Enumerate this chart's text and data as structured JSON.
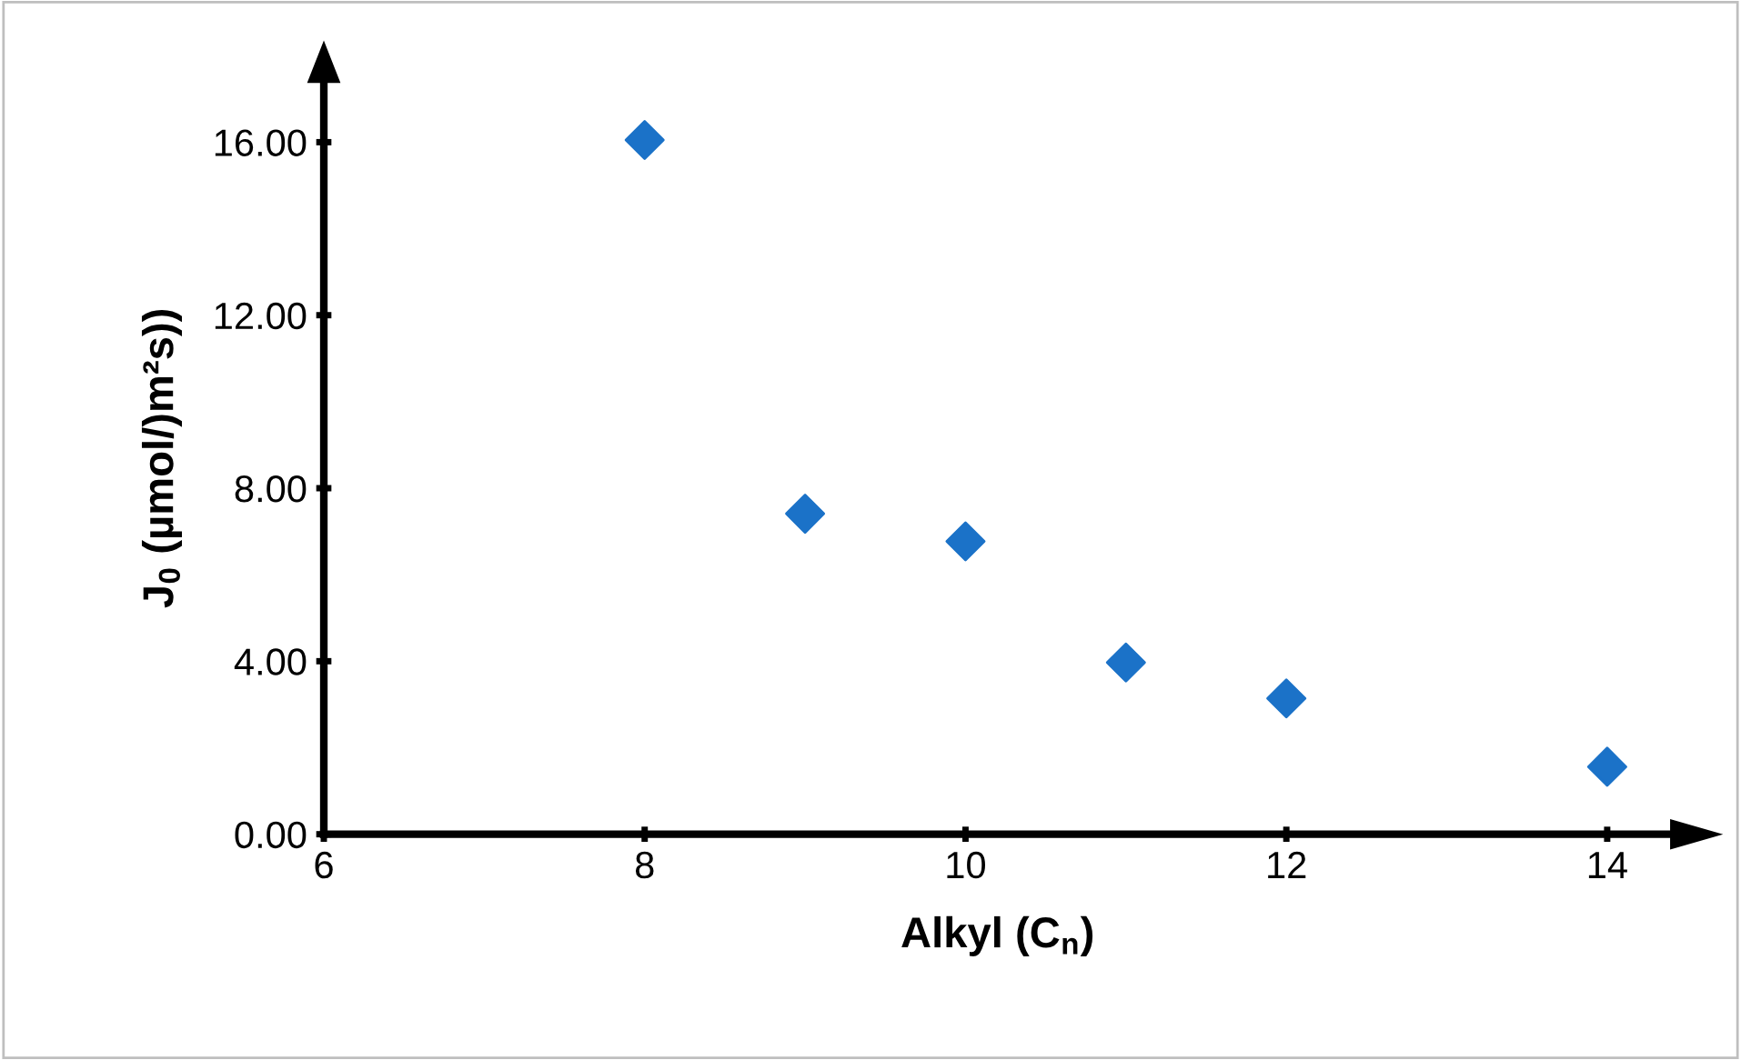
{
  "chart_data": {
    "type": "scatter",
    "xlabel": "Alkyl (C$_{n}$)",
    "ylabel": "J$_{0}$ (µmol/)m²s))",
    "x": [
      8,
      9,
      10,
      11,
      12,
      14
    ],
    "series": [
      {
        "color": "#1b72c8",
        "values": [
          16.05,
          7.41,
          6.77,
          3.97,
          3.14,
          1.56
        ]
      }
    ],
    "marker": "diamond",
    "grid": false,
    "legend": false,
    "xlim": [
      6,
      14.4
    ],
    "ylim": [
      0,
      17.4
    ],
    "xticks": [
      6,
      8,
      10,
      12,
      14
    ],
    "yticks": [
      {
        "value": 0,
        "label": "0.00"
      },
      {
        "value": 4,
        "label": "4.00"
      },
      {
        "value": 8,
        "label": "8.00"
      },
      {
        "value": 12,
        "label": "12.00"
      },
      {
        "value": 16,
        "label": "16.00"
      }
    ]
  }
}
